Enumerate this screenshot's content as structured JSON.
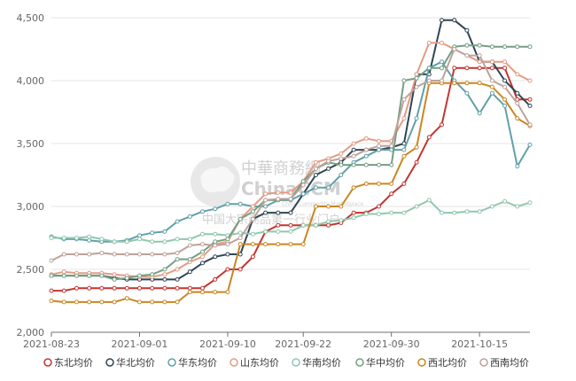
{
  "chart_data": {
    "type": "line",
    "title": "",
    "xlabel": "",
    "ylabel": "",
    "ylim": [
      2000,
      4500
    ],
    "yticks": [
      2000,
      2500,
      3000,
      3500,
      4000,
      4500
    ],
    "ytick_labels": [
      "2,000",
      "2,500",
      "3,000",
      "3,500",
      "4,000",
      "4,500"
    ],
    "x": [
      "2021-08-23",
      "2021-08-24",
      "2021-08-25",
      "2021-08-26",
      "2021-08-27",
      "2021-08-30",
      "2021-08-31",
      "2021-09-01",
      "2021-09-02",
      "2021-09-03",
      "2021-09-06",
      "2021-09-07",
      "2021-09-08",
      "2021-09-09",
      "2021-09-10",
      "2021-09-13",
      "2021-09-14",
      "2021-09-15",
      "2021-09-16",
      "2021-09-17",
      "2021-09-22",
      "2021-09-23",
      "2021-09-24",
      "2021-09-26",
      "2021-09-27",
      "2021-09-28",
      "2021-09-29",
      "2021-09-30",
      "2021-10-08",
      "2021-10-09",
      "2021-10-11",
      "2021-10-12",
      "2021-10-13",
      "2021-10-14",
      "2021-10-15",
      "2021-10-18",
      "2021-10-19",
      "2021-10-20",
      "2021-10-21"
    ],
    "xtick_labels": [
      "2021-08-23",
      "2021-09-01",
      "2021-09-10",
      "2021-09-22",
      "2021-09-30",
      "2021-10-15"
    ],
    "xtick_indices": [
      0,
      7,
      14,
      20,
      27,
      34
    ],
    "grid": "horizontal",
    "legend_position": "bottom",
    "series": [
      {
        "name": "东北均价",
        "color": "#c23531",
        "values": [
          2330,
          2330,
          2350,
          2350,
          2350,
          2350,
          2350,
          2350,
          2350,
          2350,
          2350,
          2350,
          2350,
          2420,
          2500,
          2500,
          2600,
          2800,
          2850,
          2850,
          2850,
          2850,
          2850,
          2870,
          2950,
          2950,
          3000,
          3100,
          3180,
          3350,
          3550,
          3650,
          4100,
          4100,
          4100,
          4100,
          4100,
          3850,
          3850
        ]
      },
      {
        "name": "华北均价",
        "color": "#2f4554",
        "values": [
          2450,
          2450,
          2450,
          2450,
          2450,
          2430,
          2420,
          2420,
          2420,
          2420,
          2420,
          2480,
          2550,
          2600,
          2620,
          2620,
          2900,
          2950,
          2950,
          2950,
          3100,
          3250,
          3300,
          3350,
          3450,
          3450,
          3450,
          3470,
          3500,
          4050,
          4050,
          4480,
          4480,
          4400,
          4150,
          4150,
          4000,
          3900,
          3800
        ]
      },
      {
        "name": "华东均价",
        "color": "#61a0a8",
        "values": [
          2760,
          2740,
          2740,
          2730,
          2720,
          2720,
          2730,
          2770,
          2790,
          2800,
          2880,
          2920,
          2960,
          2980,
          3020,
          3020,
          3000,
          3000,
          3050,
          3050,
          3100,
          3150,
          3150,
          3250,
          3350,
          3400,
          3450,
          3450,
          3450,
          3700,
          4100,
          4150,
          4000,
          3900,
          3740,
          3900,
          3800,
          3320,
          3490
        ]
      },
      {
        "name": "山东均价",
        "color": "#e49b84",
        "values": [
          2460,
          2480,
          2470,
          2470,
          2470,
          2460,
          2450,
          2440,
          2440,
          2460,
          2500,
          2560,
          2600,
          2700,
          2720,
          2900,
          3000,
          3100,
          3110,
          3110,
          3200,
          3350,
          3380,
          3420,
          3500,
          3540,
          3520,
          3520,
          3700,
          4050,
          4300,
          4300,
          4250,
          4200,
          4150,
          4150,
          4150,
          4050,
          4000
        ]
      },
      {
        "name": "华南均价",
        "color": "#91c7ae",
        "values": [
          2750,
          2750,
          2750,
          2760,
          2740,
          2720,
          2720,
          2740,
          2720,
          2720,
          2740,
          2740,
          2780,
          2780,
          2770,
          2790,
          2780,
          2800,
          2800,
          2800,
          2850,
          2850,
          2880,
          2890,
          2910,
          2940,
          2940,
          2950,
          2950,
          3000,
          3050,
          2950,
          2950,
          2960,
          2960,
          3000,
          3040,
          3000,
          3030
        ]
      },
      {
        "name": "华中均价",
        "color": "#749f83",
        "values": [
          2450,
          2450,
          2450,
          2450,
          2450,
          2420,
          2430,
          2450,
          2460,
          2500,
          2580,
          2580,
          2640,
          2720,
          2740,
          2900,
          2960,
          3050,
          3050,
          3060,
          3200,
          3300,
          3350,
          3330,
          3330,
          3330,
          3330,
          3330,
          4000,
          4020,
          4100,
          4100,
          4270,
          4280,
          4280,
          4270,
          4270,
          4270,
          4270
        ]
      },
      {
        "name": "西北均价",
        "color": "#ca8622",
        "values": [
          2250,
          2240,
          2240,
          2240,
          2240,
          2240,
          2270,
          2240,
          2240,
          2240,
          2240,
          2320,
          2320,
          2320,
          2320,
          2700,
          2700,
          2700,
          2700,
          2700,
          2700,
          3000,
          3000,
          3000,
          3150,
          3180,
          3180,
          3180,
          3400,
          3470,
          3980,
          3980,
          3980,
          3980,
          3980,
          3950,
          3850,
          3700,
          3640
        ]
      },
      {
        "name": "西南均价",
        "color": "#bda29a",
        "values": [
          2570,
          2620,
          2620,
          2620,
          2630,
          2620,
          2620,
          2620,
          2620,
          2620,
          2630,
          2690,
          2700,
          2690,
          2700,
          2750,
          2900,
          3050,
          3060,
          3060,
          3170,
          3300,
          3360,
          3380,
          3400,
          3450,
          3480,
          3480,
          3850,
          3950,
          4000,
          4000,
          4250,
          4200,
          4200,
          4000,
          3950,
          3820,
          3650
        ]
      }
    ]
  },
  "watermark": {
    "title": "中華商務網",
    "subtitle": "ChinaCCM",
    "small": "China Commodity Marketplace",
    "tagline": "中国大宗商品第一行业门户"
  }
}
